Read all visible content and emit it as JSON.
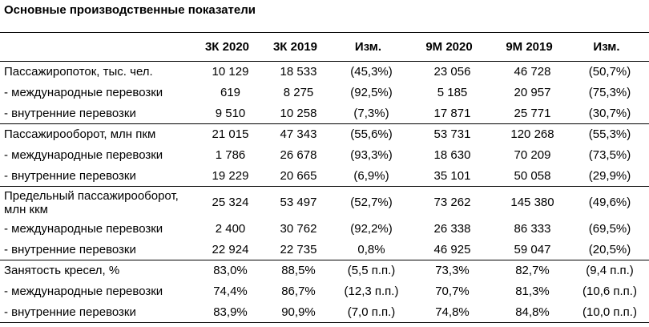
{
  "title": "Основные производственные показатели",
  "columns": [
    "",
    "3К 2020",
    "3К 2019",
    "Изм.",
    "9М 2020",
    "9М 2019",
    "Изм."
  ],
  "rows": [
    [
      "Пассажиропоток, тыс. чел.",
      "10 129",
      "18 533",
      "(45,3%)",
      "23 056",
      "46 728",
      "(50,7%)"
    ],
    [
      "- международные перевозки",
      "619",
      "8 275",
      "(92,5%)",
      "5 185",
      "20 957",
      "(75,3%)"
    ],
    [
      "- внутренние перевозки",
      "9 510",
      "10 258",
      "(7,3%)",
      "17 871",
      "25 771",
      "(30,7%)"
    ],
    [
      "Пассажирооборот, млн пкм",
      "21 015",
      "47 343",
      "(55,6%)",
      "53 731",
      "120 268",
      "(55,3%)"
    ],
    [
      "- международные перевозки",
      "1 786",
      "26 678",
      "(93,3%)",
      "18 630",
      "70 209",
      "(73,5%)"
    ],
    [
      "- внутренние перевозки",
      "19 229",
      "20 665",
      "(6,9%)",
      "35 101",
      "50 058",
      "(29,9%)"
    ],
    [
      "Предельный пассажирооборот, млн ккм",
      "25 324",
      "53 497",
      "(52,7%)",
      "73 262",
      "145 380",
      "(49,6%)"
    ],
    [
      "- международные перевозки",
      "2 400",
      "30 762",
      "(92,2%)",
      "26 338",
      "86 333",
      "(69,5%)"
    ],
    [
      "- внутренние перевозки",
      "22 924",
      "22 735",
      "0,8%",
      "46 925",
      "59 047",
      "(20,5%)"
    ],
    [
      "Занятость кресел, %",
      "83,0%",
      "88,5%",
      "(5,5 п.п.)",
      "73,3%",
      "82,7%",
      "(9,4 п.п.)"
    ],
    [
      "- международные перевозки",
      "74,4%",
      "86,7%",
      "(12,3 п.п.)",
      "70,7%",
      "81,3%",
      "(10,6 п.п.)"
    ],
    [
      "- внутренние перевозки",
      "83,9%",
      "90,9%",
      "(7,0 п.п.)",
      "74,8%",
      "84,8%",
      "(10,0 п.п.)"
    ]
  ]
}
